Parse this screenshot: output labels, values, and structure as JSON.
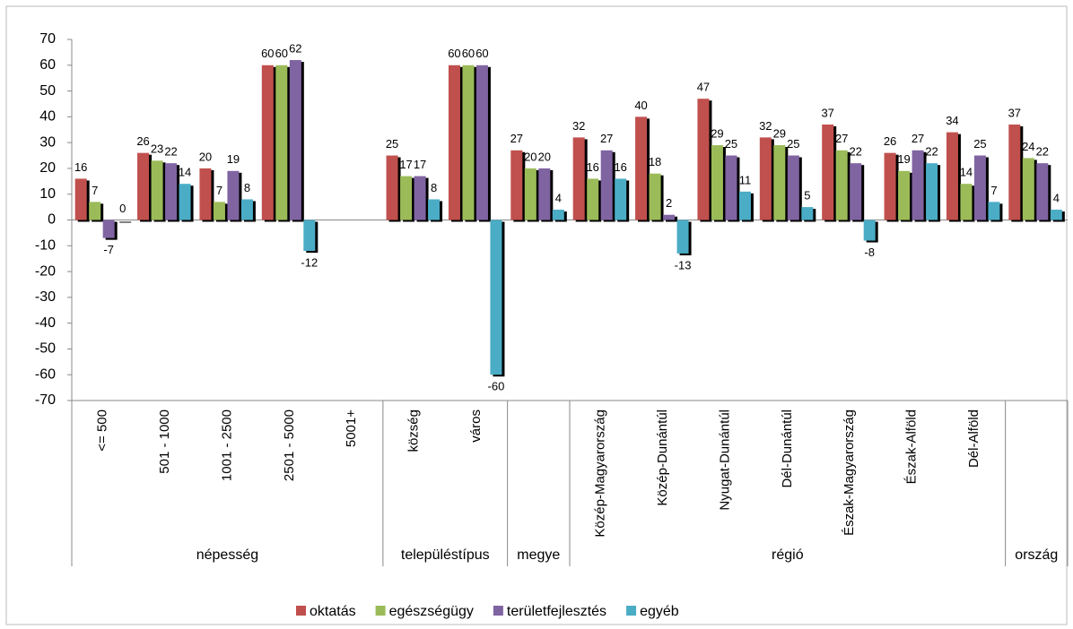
{
  "chart_data": {
    "type": "bar",
    "groups": [
      {
        "name": "népesség",
        "categories": [
          "<= 500",
          "501 - 1000",
          "1001 - 2500",
          "2501 - 5000",
          "5001+"
        ]
      },
      {
        "name": "településtípus",
        "categories": [
          "község",
          "város"
        ]
      },
      {
        "name": "megye",
        "categories": [
          null
        ]
      },
      {
        "name": "régió",
        "categories": [
          "Közép-Magyarország",
          "Közép-Dunántúl",
          "Nyugat-Dunántúl",
          "Dél-Dunántúl",
          "Észak-Magyarország",
          "Észak-Alföld",
          "Dél-Alföld"
        ]
      },
      {
        "name": "ország",
        "categories": [
          null
        ]
      }
    ],
    "series": [
      {
        "name": "oktatás",
        "color": "#c0504d",
        "values": [
          16,
          26,
          20,
          60,
          null,
          25,
          60,
          27,
          32,
          40,
          47,
          32,
          37,
          26,
          34,
          37
        ]
      },
      {
        "name": "egészségügy",
        "color": "#9bbb59",
        "values": [
          7,
          23,
          7,
          60,
          null,
          17,
          60,
          20,
          16,
          18,
          29,
          29,
          27,
          19,
          14,
          24
        ]
      },
      {
        "name": "területfejlesztés",
        "color": "#8064a2",
        "values": [
          -7,
          22,
          19,
          62,
          null,
          17,
          60,
          20,
          27,
          2,
          25,
          25,
          22,
          27,
          25,
          22
        ]
      },
      {
        "name": "egyéb",
        "color": "#4bacc6",
        "values": [
          0,
          14,
          8,
          -12,
          null,
          8,
          -60,
          4,
          16,
          -13,
          11,
          5,
          -8,
          22,
          7,
          4
        ]
      }
    ],
    "ylim": [
      -70,
      70
    ],
    "yticks": [
      -70,
      -60,
      -50,
      -40,
      -30,
      -20,
      -10,
      0,
      10,
      20,
      30,
      40,
      50,
      60,
      70
    ],
    "grid": false,
    "legend": "bottom"
  }
}
